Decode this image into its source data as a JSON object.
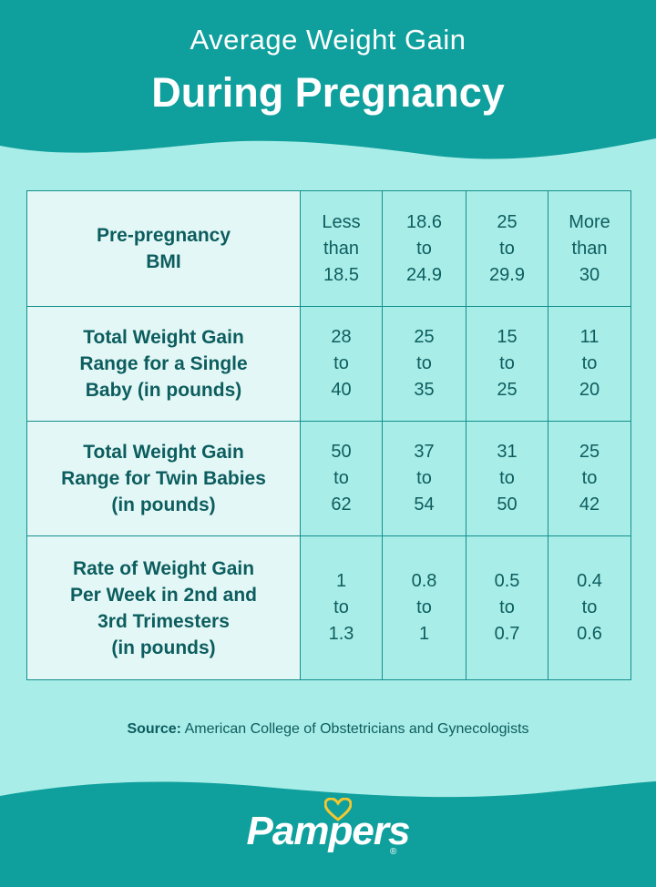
{
  "header": {
    "title_line1": "Average Weight Gain",
    "title_line2": "During Pregnancy"
  },
  "table": {
    "rows": [
      {
        "label": [
          "Pre-pregnancy",
          "BMI"
        ],
        "cells": [
          [
            "Less",
            "than",
            "18.5"
          ],
          [
            "18.6",
            "to",
            "24.9"
          ],
          [
            "25",
            "to",
            "29.9"
          ],
          [
            "More",
            "than",
            "30"
          ]
        ]
      },
      {
        "label": [
          "Total Weight Gain",
          "Range for a Single",
          "Baby (in pounds)"
        ],
        "cells": [
          [
            "28",
            "to",
            "40"
          ],
          [
            "25",
            "to",
            "35"
          ],
          [
            "15",
            "to",
            "25"
          ],
          [
            "11",
            "to",
            "20"
          ]
        ]
      },
      {
        "label": [
          "Total Weight Gain",
          "Range for Twin Babies",
          "(in pounds)"
        ],
        "cells": [
          [
            "50",
            "to",
            "62"
          ],
          [
            "37",
            "to",
            "54"
          ],
          [
            "31",
            "to",
            "50"
          ],
          [
            "25",
            "to",
            "42"
          ]
        ]
      },
      {
        "label": [
          "Rate of Weight Gain",
          "Per Week in 2nd and",
          "3rd Trimesters",
          "(in pounds)"
        ],
        "cells": [
          [
            "1",
            "to",
            "1.3"
          ],
          [
            "0.8",
            "to",
            "1"
          ],
          [
            "0.5",
            "to",
            "0.7"
          ],
          [
            "0.4",
            "to",
            "0.6"
          ]
        ]
      }
    ]
  },
  "source": {
    "label": "Source:",
    "text": "American College of Obstetricians and Gynecologists"
  },
  "footer": {
    "brand": "Pampers",
    "registered": "®"
  },
  "colors": {
    "teal": "#0fa09d",
    "light_teal": "#a9ede8",
    "pale_cell": "#e3f8f6",
    "text_dark": "#0d5d5f",
    "heart_yellow": "#f6c62f"
  }
}
